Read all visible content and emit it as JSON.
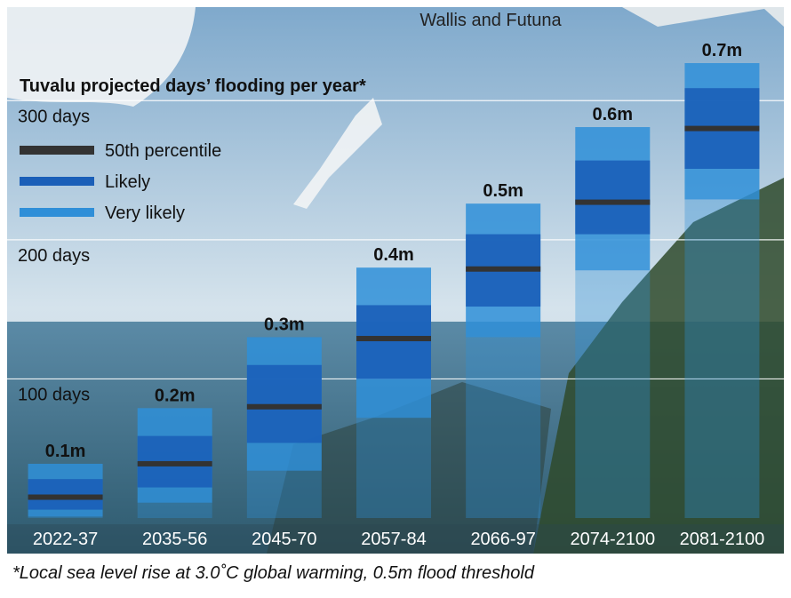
{
  "chart_data": {
    "type": "range-bar",
    "title": "Tuvalu projected days’ flooding per year*",
    "map_label": "Wallis and Futuna",
    "footnote": "*Local sea level rise at 3.0˚C global warming, 0.5m flood threshold",
    "categories": [
      "2022-37",
      "2035-56",
      "2045-70",
      "2057-84",
      "2066-97",
      "2074-2100",
      "2081-2100"
    ],
    "bar_labels": [
      "0.1m",
      "0.2m",
      "0.3m",
      "0.4m",
      "0.5m",
      "0.6m",
      "0.7m"
    ],
    "series": [
      {
        "name": "50th percentile",
        "color": "#333333",
        "values": [
          15,
          39,
          80,
          129,
          179,
          227,
          280
        ]
      },
      {
        "name": "Likely",
        "color": "#1b5fb8",
        "values": [
          [
            6,
            28
          ],
          [
            22,
            59
          ],
          [
            54,
            110
          ],
          [
            100,
            153
          ],
          [
            152,
            204
          ],
          [
            204,
            257
          ],
          [
            251,
            309
          ]
        ]
      },
      {
        "name": "Very likely",
        "color": "#2f8fd8",
        "values": [
          [
            1,
            39
          ],
          [
            11,
            79
          ],
          [
            34,
            130
          ],
          [
            72,
            180
          ],
          [
            130,
            226
          ],
          [
            178,
            281
          ],
          [
            229,
            327
          ]
        ]
      }
    ],
    "ylim": [
      0,
      350
    ],
    "yticks": [
      {
        "value": 100,
        "label": "100 days"
      },
      {
        "value": 200,
        "label": "200 days"
      },
      {
        "value": 300,
        "label": "300 days"
      }
    ],
    "grid": true
  }
}
